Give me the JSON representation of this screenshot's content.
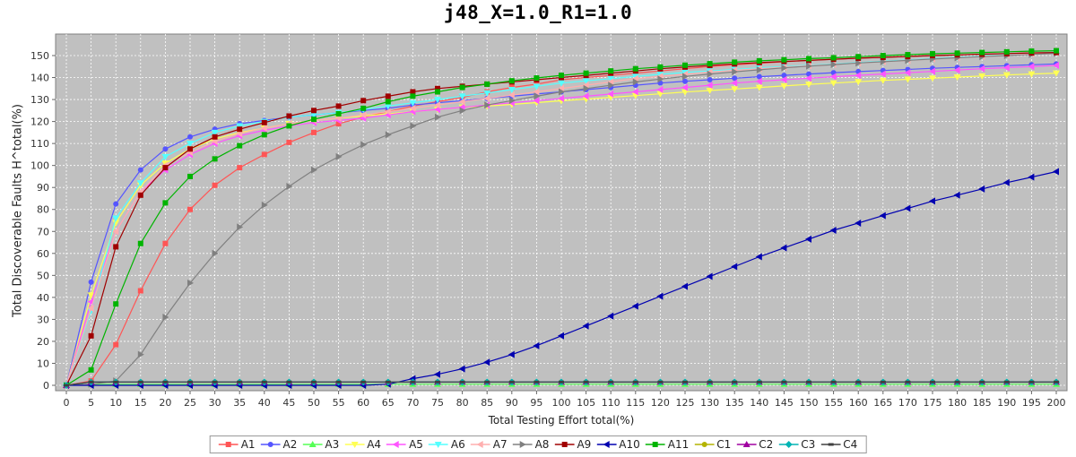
{
  "chart_data": {
    "type": "line",
    "title": "j48_X=1.0_R1=1.0",
    "xlabel": "Total Testing Effort total(%)",
    "ylabel": "Total Discoverable Faults H^total(%)",
    "xlim": [
      0,
      200
    ],
    "ylim": [
      0,
      155
    ],
    "x_ticks": [
      0,
      5,
      10,
      15,
      20,
      25,
      30,
      35,
      40,
      45,
      50,
      55,
      60,
      65,
      70,
      75,
      80,
      85,
      90,
      95,
      100,
      105,
      110,
      115,
      120,
      125,
      130,
      135,
      140,
      145,
      150,
      155,
      160,
      165,
      170,
      175,
      180,
      185,
      190,
      195,
      200
    ],
    "y_ticks": [
      0,
      10,
      20,
      30,
      40,
      50,
      60,
      70,
      80,
      90,
      100,
      110,
      120,
      130,
      140,
      150
    ],
    "grid": true,
    "legend_position": "bottom",
    "x": [
      0,
      5,
      10,
      15,
      20,
      25,
      30,
      35,
      40,
      45,
      50,
      55,
      60,
      65,
      70,
      75,
      80,
      85,
      90,
      95,
      100,
      105,
      110,
      115,
      120,
      125,
      130,
      135,
      140,
      145,
      150,
      155,
      160,
      165,
      170,
      175,
      180,
      185,
      190,
      195,
      200
    ],
    "series": [
      {
        "name": "A1",
        "color": "#ff5555",
        "marker": "square",
        "values": [
          0,
          2,
          18.5,
          43,
          64.5,
          80,
          91,
          99,
          105,
          110.5,
          115,
          119,
          122,
          124.5,
          127,
          129,
          131,
          133.5,
          135.5,
          137,
          139,
          140,
          141,
          142,
          143,
          144,
          145,
          145.8,
          146.5,
          147.2,
          147.8,
          148.3,
          148.8,
          149.2,
          149.6,
          150,
          150.3,
          150.6,
          150.9,
          151.2,
          151.4
        ]
      },
      {
        "name": "A2",
        "color": "#5555ff",
        "marker": "circle",
        "values": [
          0,
          47,
          82.5,
          98,
          107.5,
          113,
          116.5,
          119,
          120.5,
          122,
          123,
          124,
          125,
          126,
          127.5,
          128.5,
          129.5,
          130.5,
          131.5,
          132.5,
          133.5,
          134.5,
          135.5,
          136.5,
          137.5,
          138.3,
          139,
          139.7,
          140.4,
          141,
          141.6,
          142.2,
          142.7,
          143.2,
          143.7,
          144.2,
          144.6,
          145,
          145.4,
          145.8,
          146.2
        ]
      },
      {
        "name": "A3",
        "color": "#55ff55",
        "marker": "triangle-up",
        "values": [
          0,
          0.5,
          0.5,
          0.5,
          0.5,
          0.5,
          0.5,
          0.5,
          0.5,
          0.5,
          0.5,
          0.5,
          0.5,
          0.5,
          0.5,
          0.5,
          0.5,
          0.5,
          0.5,
          0.5,
          0.5,
          0.5,
          0.5,
          0.5,
          0.5,
          0.5,
          0.5,
          0.5,
          0.5,
          0.5,
          0.5,
          0.5,
          0.5,
          0.5,
          0.5,
          0.5,
          0.5,
          0.5,
          0.5,
          0.5,
          0.5
        ]
      },
      {
        "name": "A4",
        "color": "#ffff55",
        "marker": "triangle-down",
        "values": [
          0,
          41,
          74,
          91,
          101,
          107.5,
          112,
          115,
          117,
          119,
          120.5,
          121.5,
          122.5,
          123.5,
          124.5,
          125.5,
          126.5,
          127,
          127.8,
          128.6,
          129.4,
          130.2,
          131,
          131.8,
          132.6,
          133.4,
          134.1,
          134.8,
          135.5,
          136.2,
          136.9,
          137.5,
          138.1,
          138.7,
          139.2,
          139.7,
          140.2,
          140.7,
          141.2,
          141.6,
          142
        ]
      },
      {
        "name": "A5",
        "color": "#ff55ff",
        "marker": "triangle-left",
        "values": [
          0,
          38,
          70,
          88,
          98,
          105,
          110,
          113.5,
          116,
          118,
          119.5,
          120.5,
          121.5,
          123,
          124.5,
          125.5,
          126.5,
          127.5,
          128.5,
          129.5,
          130.5,
          131.5,
          132.5,
          133.5,
          134.5,
          135.5,
          136.5,
          137.5,
          138.3,
          139,
          139.7,
          140.4,
          141,
          141.6,
          142.2,
          142.8,
          143.4,
          144,
          144.5,
          145,
          145.5
        ]
      },
      {
        "name": "A6",
        "color": "#55ffff",
        "marker": "triangle-down",
        "values": [
          0,
          34,
          76,
          92,
          104,
          110,
          115,
          118,
          120,
          122,
          123,
          124,
          125.5,
          127,
          128.5,
          130,
          131.5,
          133,
          134.5,
          136,
          137.5,
          138.5,
          139.5,
          140.5,
          141.5,
          142.3,
          143,
          143.7,
          144.4,
          145,
          145.6,
          146.2,
          146.8,
          147.4,
          148,
          148.6,
          149.2,
          149.8,
          150.4,
          151,
          151.5
        ]
      },
      {
        "name": "A7",
        "color": "#ffafaf",
        "marker": "triangle-left",
        "values": [
          0,
          35,
          70,
          88,
          100,
          106,
          111,
          114.5,
          117,
          119,
          120.5,
          121.5,
          123,
          124.5,
          126,
          127.5,
          129,
          130.5,
          132,
          133.5,
          135,
          136.5,
          138,
          139.5,
          140.5,
          141.5,
          142.5,
          143.3,
          144,
          144.7,
          145.4,
          146,
          146.6,
          147.2,
          147.8,
          148.4,
          149,
          149.6,
          150.2,
          150.8,
          151.4
        ]
      },
      {
        "name": "A8",
        "color": "#808080",
        "marker": "triangle-right",
        "values": [
          0,
          0.5,
          2,
          14,
          31,
          46.5,
          60,
          72,
          82,
          90.5,
          98,
          104,
          109.5,
          114,
          118,
          122,
          125,
          127.5,
          129.5,
          131.5,
          133.5,
          135,
          136.5,
          138,
          139.3,
          140.5,
          141.6,
          142.6,
          143.5,
          144.4,
          145.2,
          145.9,
          146.6,
          147.2,
          147.8,
          148.4,
          149,
          149.5,
          150,
          150.5,
          151
        ]
      },
      {
        "name": "A9",
        "color": "#a00000",
        "marker": "square",
        "values": [
          0,
          22.5,
          63,
          86.5,
          99,
          107.5,
          113,
          116.5,
          119.5,
          122.5,
          125,
          127,
          129.5,
          131.5,
          133.5,
          135,
          136,
          137,
          138,
          139,
          140,
          141,
          142,
          143,
          144,
          144.8,
          145.5,
          146.2,
          146.8,
          147.3,
          147.8,
          148.3,
          148.8,
          149.2,
          149.6,
          150,
          150.3,
          150.6,
          150.9,
          151.2,
          151.4
        ]
      },
      {
        "name": "A10",
        "color": "#0000b0",
        "marker": "triangle-left",
        "values": [
          0,
          0,
          0,
          0,
          0,
          0,
          0,
          0,
          0,
          0,
          0,
          0,
          0,
          0.5,
          3,
          5,
          7.5,
          10.5,
          14,
          18,
          22.5,
          27,
          31.5,
          36,
          40.5,
          45,
          49.5,
          54,
          58.5,
          62.5,
          66.5,
          70.5,
          73.8,
          77.2,
          80.5,
          83.8,
          86.5,
          89.3,
          92.2,
          94.7,
          97.2
        ]
      },
      {
        "name": "A11",
        "color": "#00b400",
        "marker": "square",
        "values": [
          0,
          7,
          37,
          64.5,
          83,
          95,
          103,
          109,
          114,
          118,
          121,
          123.5,
          126,
          129,
          131.5,
          133.5,
          135.5,
          137,
          138.5,
          139.8,
          141,
          142,
          143,
          144,
          144.8,
          145.6,
          146.3,
          147,
          147.6,
          148.1,
          148.6,
          149,
          149.5,
          150,
          150.4,
          150.8,
          151.1,
          151.4,
          151.7,
          152,
          152.2
        ]
      },
      {
        "name": "C1",
        "color": "#b4b400",
        "marker": "circle",
        "values": [
          0,
          1.5,
          1.5,
          1.5,
          1.5,
          1.5,
          1.5,
          1.5,
          1.5,
          1.5,
          1.5,
          1.5,
          1.5,
          1.5,
          1.5,
          1.5,
          1.5,
          1.5,
          1.5,
          1.5,
          1.5,
          1.5,
          1.5,
          1.5,
          1.5,
          1.5,
          1.5,
          1.5,
          1.5,
          1.5,
          1.5,
          1.5,
          1.5,
          1.5,
          1.5,
          1.5,
          1.5,
          1.5,
          1.5,
          1.5,
          1.5
        ]
      },
      {
        "name": "C2",
        "color": "#a000a0",
        "marker": "triangle-up",
        "values": [
          0,
          1.5,
          1.5,
          1.5,
          1.5,
          1.5,
          1.5,
          1.5,
          1.5,
          1.5,
          1.5,
          1.5,
          1.5,
          1.5,
          1.5,
          1.5,
          1.5,
          1.5,
          1.5,
          1.5,
          1.5,
          1.5,
          1.5,
          1.5,
          1.5,
          1.5,
          1.5,
          1.5,
          1.5,
          1.5,
          1.5,
          1.5,
          1.5,
          1.5,
          1.5,
          1.5,
          1.5,
          1.5,
          1.5,
          1.5,
          1.5
        ]
      },
      {
        "name": "C3",
        "color": "#00b4b4",
        "marker": "diamond",
        "values": [
          0,
          1.5,
          1.5,
          1.5,
          1.5,
          1.5,
          1.5,
          1.5,
          1.5,
          1.5,
          1.5,
          1.5,
          1.5,
          1.5,
          1.5,
          1.5,
          1.5,
          1.5,
          1.5,
          1.5,
          1.5,
          1.5,
          1.5,
          1.5,
          1.5,
          1.5,
          1.5,
          1.5,
          1.5,
          1.5,
          1.5,
          1.5,
          1.5,
          1.5,
          1.5,
          1.5,
          1.5,
          1.5,
          1.5,
          1.5,
          1.5
        ]
      },
      {
        "name": "C4",
        "color": "#404040",
        "marker": "rect",
        "values": [
          0,
          1.5,
          1.5,
          1.5,
          1.5,
          1.5,
          1.5,
          1.5,
          1.5,
          1.5,
          1.5,
          1.5,
          1.5,
          1.5,
          1.5,
          1.5,
          1.5,
          1.5,
          1.5,
          1.5,
          1.5,
          1.5,
          1.5,
          1.5,
          1.5,
          1.5,
          1.5,
          1.5,
          1.5,
          1.5,
          1.5,
          1.5,
          1.5,
          1.5,
          1.5,
          1.5,
          1.5,
          1.5,
          1.5,
          1.5,
          1.5
        ]
      }
    ]
  }
}
